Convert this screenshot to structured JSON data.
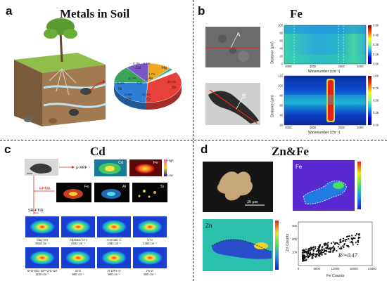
{
  "panel_a": {
    "letter": "a",
    "title": "Metals in Soil",
    "pie_labels": [
      {
        "label": "Cd",
        "value": "0.1%"
      },
      {
        "label": "Hg",
        "value": "0.1%"
      },
      {
        "label": "As",
        "value": "1.7%"
      },
      {
        "label": "Cu",
        "value": "11.2%"
      },
      {
        "label": "Ni",
        "value": "11.2%"
      },
      {
        "label": "Pb",
        "value": "13.9%"
      },
      {
        "label": "Cr",
        "value": "24.3%"
      },
      {
        "label": "Zn",
        "value": "35.1%"
      }
    ],
    "colors": {
      "Zn": "#e8403a",
      "Cr": "#2f7fd6",
      "Pb": "#3aa45a",
      "Ni": "#7a56c7",
      "Cu": "#f2a81d",
      "As": "#22b3b0",
      "Cd": "#c9c9c9",
      "Hg": "#e87aa8"
    }
  },
  "panel_b": {
    "letter": "b",
    "title": "Fe",
    "image_label_a": "A",
    "image_label_b": "B",
    "top_map": {
      "ylabel": "Distance (μm)",
      "xlabel": "Wavenumber (cm⁻¹)",
      "yticks": [
        "100",
        "80",
        "60",
        "40",
        "20",
        "0"
      ],
      "xticks": [
        "4000",
        "3000",
        "2000",
        "1000"
      ],
      "colorbar": [
        "0.60",
        "0.45",
        "0.30",
        "0.15",
        "0.00"
      ]
    },
    "bottom_map": {
      "ylabel": "Distance (μm)",
      "xlabel": "Wavenumber (cm⁻¹)",
      "yticks": [
        "120",
        "100",
        "80",
        "60",
        "40",
        "20"
      ],
      "xticks": [
        "4000",
        "3000",
        "2000",
        "1000"
      ],
      "colorbar": [
        "1.00",
        "0.75",
        "0.50",
        "0.25",
        "0.00"
      ]
    }
  },
  "panel_c": {
    "letter": "c",
    "title": "Cd",
    "method_xrf": "μ-XRF",
    "method_epma": "EPMA",
    "method_srftir": "SR-FTIR",
    "xrf_elements": [
      "Cd",
      "Fe"
    ],
    "epma_elements": [
      "Fe",
      "Al",
      "Si"
    ],
    "scale_high": "High",
    "scale_low": "Low",
    "ftir_row1": [
      {
        "name": "Clay-OH",
        "wn": "3618 cm⁻¹"
      },
      {
        "name": "Aliphatic C-H",
        "wn": "2922 cm⁻¹"
      },
      {
        "name": "Aromatic C",
        "wn": "1463 cm⁻¹"
      },
      {
        "name": "C-H",
        "wn": "1463 cm⁻¹"
      }
    ],
    "ftir_row2": [
      {
        "name": "Si-O-Si/C-O/P-O/C-OH",
        "wn": "1100 cm⁻¹"
      },
      {
        "name": "Si-O",
        "wn": "960 cm⁻¹"
      },
      {
        "name": "Al-O/Fe-O",
        "wn": "900 cm⁻¹"
      },
      {
        "name": "Fe-O",
        "wn": "800 cm⁻¹"
      }
    ]
  },
  "panel_d": {
    "letter": "d",
    "title": "Zn&Fe",
    "scale_bar": "20 μm",
    "fe_label": "Fe",
    "zn_label": "Zn",
    "scatter": {
      "xlabel": "Fe Counts",
      "ylabel": "Zn Counts",
      "annotation": "R²=0.47",
      "xticks": [
        "0",
        "6000",
        "12000",
        "18000",
        "24000"
      ],
      "yticks": [
        "100",
        "200",
        "300"
      ]
    }
  }
}
